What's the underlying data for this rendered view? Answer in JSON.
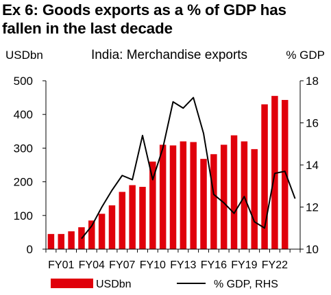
{
  "exhibit": {
    "title_line1": "Ex 6: Goods exports as a % of GDP has",
    "title_line2": "fallen in the last decade"
  },
  "chart_data": {
    "type": "bar+line",
    "title": "India: Merchandise exports",
    "left_axis_label": "USDbn",
    "right_axis_label": "% GDP",
    "left_ylim": [
      0,
      500
    ],
    "left_ticks": [
      0,
      100,
      200,
      300,
      400,
      500
    ],
    "right_ylim": [
      10,
      18
    ],
    "right_ticks": [
      10,
      12,
      14,
      16,
      18
    ],
    "x": [
      "FY00",
      "FY01",
      "FY02",
      "FY03",
      "FY04",
      "FY05",
      "FY06",
      "FY07",
      "FY08",
      "FY09",
      "FY10",
      "FY11",
      "FY12",
      "FY13",
      "FY14",
      "FY15",
      "FY16",
      "FY17",
      "FY18",
      "FY19",
      "FY20",
      "FY21",
      "FY22",
      "FY23",
      "FY24"
    ],
    "x_tick_labels": [
      "FY01",
      "FY04",
      "FY07",
      "FY10",
      "FY13",
      "FY16",
      "FY19",
      "FY22"
    ],
    "series": [
      {
        "name": "USDbn",
        "type": "bar",
        "axis": "left",
        "color": "#e0000b",
        "values": [
          45,
          45,
          53,
          65,
          85,
          105,
          130,
          170,
          190,
          185,
          260,
          310,
          308,
          320,
          318,
          268,
          282,
          310,
          338,
          320,
          297,
          430,
          455,
          443,
          null
        ]
      },
      {
        "name": "% GDP, RHS",
        "type": "line",
        "axis": "right",
        "color": "#000000",
        "values": [
          null,
          null,
          null,
          10.5,
          11.1,
          12.0,
          12.8,
          13.5,
          13.3,
          15.4,
          13.3,
          14.8,
          17.0,
          16.7,
          17.2,
          15.5,
          12.6,
          12.2,
          11.7,
          12.5,
          11.3,
          11.0,
          13.6,
          13.7,
          12.4
        ]
      }
    ],
    "grid": false,
    "legend_position": "bottom"
  },
  "legend": {
    "bar_label": "USDbn",
    "line_label": "% GDP, RHS"
  }
}
